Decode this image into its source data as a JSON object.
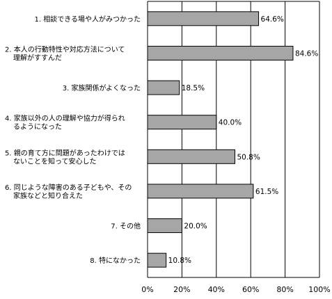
{
  "chart_data": {
    "type": "bar",
    "orientation": "horizontal",
    "categories": [
      [
        "1. 相談できる場や人がみつかった"
      ],
      [
        "2. 本人の行動特性や対応方法について",
        "理解がすすんだ"
      ],
      [
        "3. 家族関係がよくなった"
      ],
      [
        "4. 家族以外の人の理解や協力が得られ",
        "るようになった"
      ],
      [
        "5. 親の育て方に問題があったわけでは",
        "ないことを知って安心した"
      ],
      [
        "6. 同じような障害のある子どもや、その",
        "家族などと知り合えた"
      ],
      [
        "7. その他"
      ],
      [
        "8. 特になかった"
      ]
    ],
    "values": [
      64.6,
      84.6,
      18.5,
      40.0,
      50.8,
      61.5,
      20.0,
      10.8
    ],
    "value_labels": [
      "64.6%",
      "84.6%",
      "18.5%",
      "40.0%",
      "50.8%",
      "61.5%",
      "20.0%",
      "10.8%"
    ],
    "xlim": [
      0,
      100
    ],
    "ticks": [
      0,
      20,
      40,
      60,
      80,
      100
    ],
    "tick_labels": [
      "0%",
      "20%",
      "40%",
      "60%",
      "80%",
      "100%"
    ],
    "grid": "vertical",
    "colors": {
      "bar": "#a6a6a6",
      "bar_stroke": "#000000",
      "grid": "#000000"
    }
  }
}
